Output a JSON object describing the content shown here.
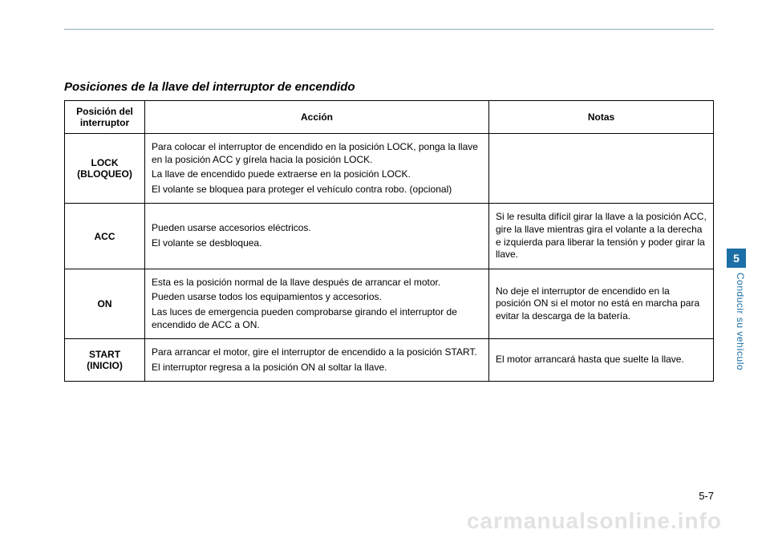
{
  "title": "Posiciones de la llave del interruptor de encendido",
  "headers": {
    "pos": "Posición del interruptor",
    "action": "Acción",
    "notes": "Notas"
  },
  "rows": [
    {
      "pos": "LOCK (BLOQUEO)",
      "action": [
        "Para colocar el interruptor de encendido en la posición LOCK, ponga la llave en la posición ACC y gírela hacia la posición LOCK.",
        "La llave de encendido puede extraerse en la posición LOCK.",
        "El volante se bloquea para proteger el vehículo contra robo. (opcional)"
      ],
      "notes": []
    },
    {
      "pos": "ACC",
      "action": [
        "Pueden usarse accesorios eléctricos.",
        "El volante se desbloquea."
      ],
      "notes": [
        "Si le resulta difícil girar la llave a la posición ACC, gire la llave mientras gira el volante a la derecha e izquierda para liberar la tensión y poder girar la llave."
      ]
    },
    {
      "pos": "ON",
      "action": [
        "Esta es la posición normal de la llave después de arrancar el motor.",
        "Pueden usarse todos los equipamientos y accesorios.",
        "Las luces de emergencia pueden comprobarse girando el interruptor de encendido de ACC a ON."
      ],
      "notes": [
        "No deje el interruptor de encendido en la posición ON si el motor no está en marcha para evitar la descarga de la batería."
      ]
    },
    {
      "pos": "START (INICIO)",
      "action": [
        "Para arrancar el motor, gire el interruptor de encendido a la posición START.",
        "El interruptor regresa a la posición ON al soltar la llave."
      ],
      "notes": [
        "El motor arrancará hasta que suelte la llave."
      ]
    }
  ],
  "side": {
    "chapter": "5",
    "label": "Conducir su vehículo"
  },
  "page_number": "5-7",
  "watermark": "carmanualsonline.info",
  "colors": {
    "accent": "#1b6fa6",
    "rule": "#8fa8b8",
    "watermark": "#e2e2e2",
    "text": "#000000",
    "background": "#ffffff"
  }
}
